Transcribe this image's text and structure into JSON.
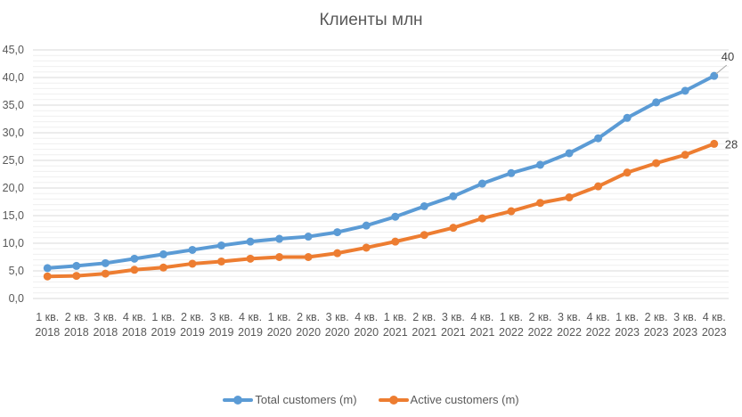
{
  "chart_data": {
    "type": "line",
    "title": "Клиенты млн",
    "xlabel": "",
    "ylabel": "",
    "ylim": [
      0,
      45
    ],
    "yticks": [
      "0,0",
      "5,0",
      "10,0",
      "15,0",
      "20,0",
      "25,0",
      "30,0",
      "35,0",
      "40,0",
      "45,0"
    ],
    "grid": true,
    "legend_position": "bottom",
    "categories": [
      "1 кв. 2018",
      "2 кв. 2018",
      "3 кв. 2018",
      "4 кв. 2018",
      "1 кв. 2019",
      "2 кв. 2019",
      "3 кв. 2019",
      "4 кв. 2019",
      "1 кв. 2020",
      "2 кв. 2020",
      "3 кв. 2020",
      "4 кв. 2020",
      "1 кв. 2021",
      "2 кв. 2021",
      "3 кв. 2021",
      "4 кв. 2021",
      "1 кв. 2022",
      "2 кв. 2022",
      "3 кв. 2022",
      "4 кв. 2022",
      "1 кв. 2023",
      "2 кв. 2023",
      "3 кв. 2023",
      "4 кв. 2023"
    ],
    "series": [
      {
        "name": "Total customers (m)",
        "color": "#5B9BD5",
        "values": [
          5.5,
          5.9,
          6.4,
          7.2,
          8.0,
          8.8,
          9.6,
          10.3,
          10.8,
          11.2,
          12.0,
          13.2,
          14.8,
          16.7,
          18.5,
          20.8,
          22.7,
          24.2,
          26.3,
          29.0,
          32.7,
          35.5,
          37.6,
          40.3
        ],
        "end_label": "40"
      },
      {
        "name": "Active customers (m)",
        "color": "#ED7D31",
        "values": [
          4.0,
          4.1,
          4.5,
          5.2,
          5.6,
          6.3,
          6.7,
          7.2,
          7.5,
          7.5,
          8.2,
          9.2,
          10.3,
          11.5,
          12.8,
          14.5,
          15.8,
          17.3,
          18.3,
          20.3,
          22.8,
          24.5,
          26.0,
          28.0
        ],
        "end_label": "28"
      }
    ]
  },
  "colors": {
    "text": "#595959",
    "major_grid": "#D9D9D9",
    "minor_grid": "#EFEFEF"
  }
}
